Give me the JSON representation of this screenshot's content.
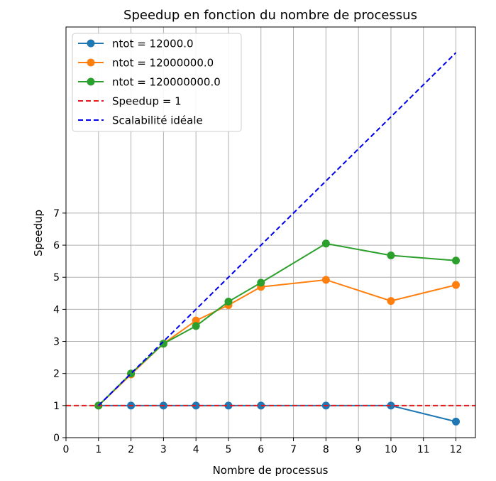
{
  "chart_data": {
    "type": "line",
    "title": "Speedup en fonction du nombre de processus",
    "xlabel": "Nombre de processus",
    "ylabel": "Speedup",
    "xlim": [
      0,
      12.6
    ],
    "ylim": [
      0,
      12.8
    ],
    "xticks": [
      0,
      1,
      2,
      3,
      4,
      5,
      6,
      7,
      8,
      9,
      10,
      11,
      12
    ],
    "yticks": [
      0,
      1,
      2,
      3,
      4,
      5,
      6,
      7
    ],
    "grid": true,
    "legend_position": "top-left",
    "series": [
      {
        "name": "ntot = 12000.0",
        "color": "#1f77b4",
        "style": "solid",
        "marker": true,
        "x": [
          1,
          2,
          3,
          4,
          5,
          6,
          8,
          10,
          12
        ],
        "y": [
          1.0,
          1.0,
          1.0,
          1.0,
          1.0,
          1.0,
          1.0,
          1.0,
          0.5
        ]
      },
      {
        "name": "ntot = 12000000.0",
        "color": "#ff7f0e",
        "style": "solid",
        "marker": true,
        "x": [
          1,
          2,
          3,
          4,
          5,
          6,
          8,
          10,
          12
        ],
        "y": [
          1.0,
          1.97,
          2.93,
          3.65,
          4.13,
          4.7,
          4.92,
          4.26,
          4.76
        ]
      },
      {
        "name": "ntot = 120000000.0",
        "color": "#2ca02c",
        "style": "solid",
        "marker": true,
        "x": [
          1,
          2,
          3,
          4,
          5,
          6,
          8,
          10,
          12
        ],
        "y": [
          1.0,
          2.0,
          2.93,
          3.48,
          4.24,
          4.83,
          6.05,
          5.68,
          5.52
        ]
      },
      {
        "name": "Speedup = 1",
        "color": "#e41a1c",
        "style": "dashed",
        "marker": false,
        "x": [
          0,
          12.6
        ],
        "y": [
          1,
          1
        ]
      },
      {
        "name": "Scalabilité idéale",
        "color": "#0000ee",
        "style": "dashed",
        "marker": false,
        "x": [
          1,
          12
        ],
        "y": [
          1,
          12
        ]
      }
    ]
  }
}
